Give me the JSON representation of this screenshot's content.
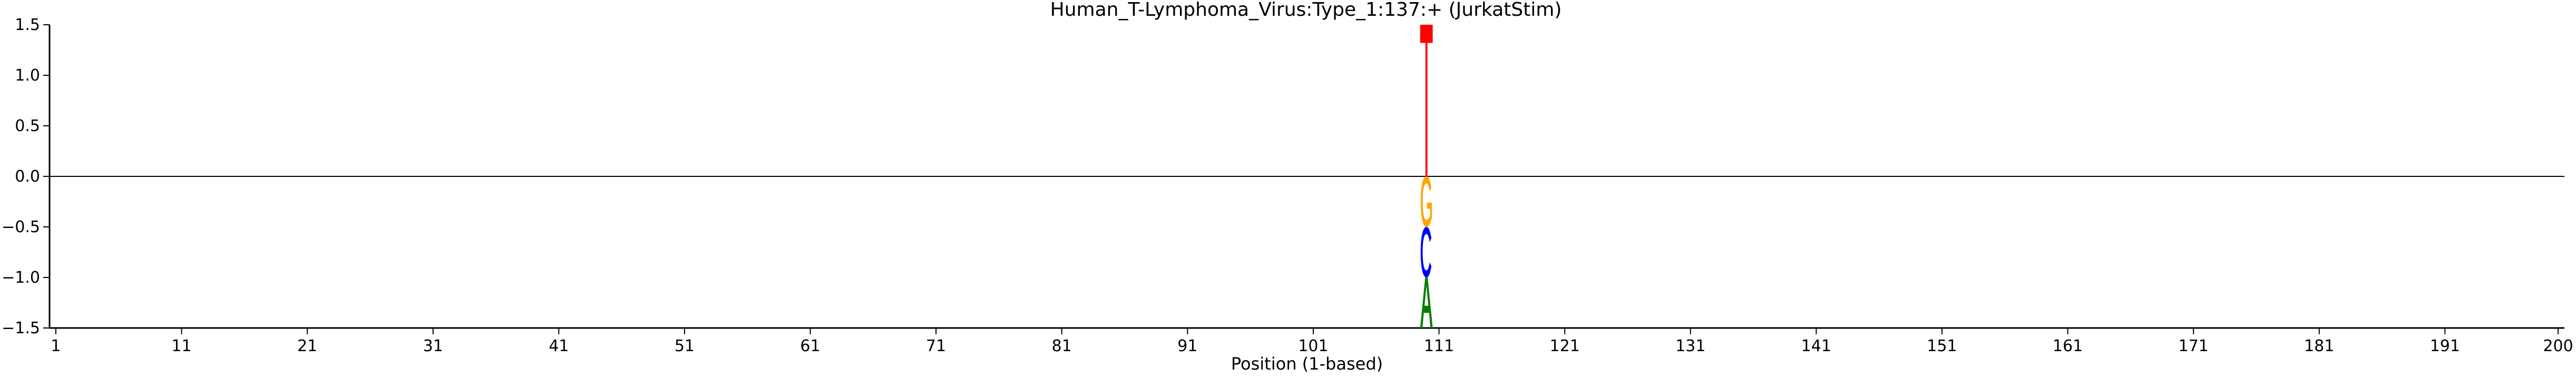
{
  "chart_data": {
    "type": "sequence_logo",
    "title": "Human_T-Lymphoma_Virus:Type_1:137:+  (JurkatStim)",
    "xlabel": "Position (1-based)",
    "ylabel": "",
    "xlim": [
      1,
      200
    ],
    "ylim": [
      -1.5,
      1.5
    ],
    "x_ticks": [
      1,
      11,
      21,
      31,
      41,
      51,
      61,
      71,
      81,
      91,
      101,
      111,
      121,
      131,
      141,
      151,
      161,
      171,
      181,
      191,
      200
    ],
    "y_ticks": [
      1.5,
      1.0,
      0.5,
      0.0,
      -0.5,
      -1.0,
      -1.5
    ],
    "y_tick_labels": [
      "1.5",
      "1.0",
      "0.5",
      "0.0",
      "−0.5",
      "−1.0",
      "−1.5"
    ],
    "zero_line": true,
    "grid": false,
    "letters": [
      {
        "position": 110,
        "letter": "T",
        "bottom": 0.0,
        "top": 1.5,
        "color": "#ff0000"
      },
      {
        "position": 110,
        "letter": "G",
        "bottom": -0.5,
        "top": 0.0,
        "color": "#ffa500"
      },
      {
        "position": 110,
        "letter": "C",
        "bottom": -1.0,
        "top": -0.5,
        "color": "#0000ff"
      },
      {
        "position": 110,
        "letter": "A",
        "bottom": -1.5,
        "top": -1.0,
        "color": "#008000"
      }
    ]
  }
}
